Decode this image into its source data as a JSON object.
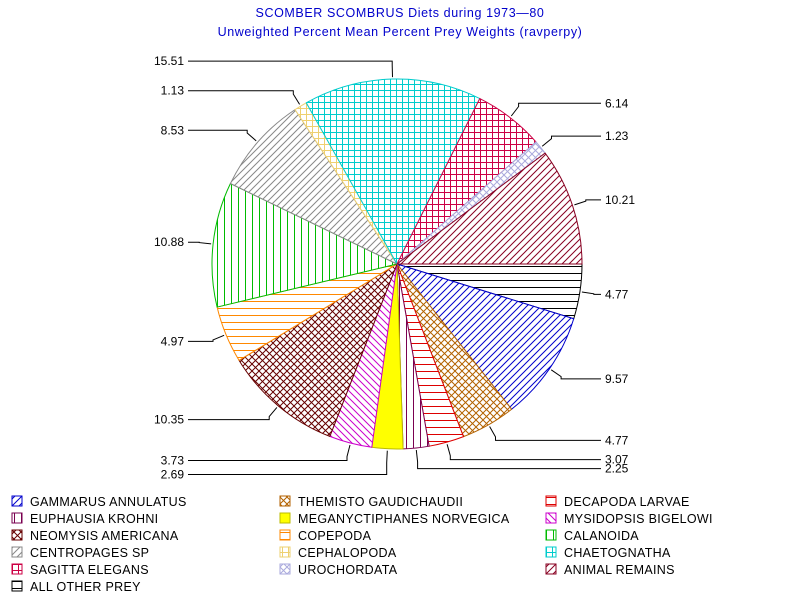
{
  "chart_data": {
    "type": "pie",
    "title": "SCOMBER SCOMBRUS Diets during 1973—80",
    "subtitle": "Unweighted Percent Mean Percent Prey  Weights (ravperpy)",
    "legend_position": "bottom",
    "slices": [
      {
        "name": "ALL OTHER PREY",
        "value": 4.77,
        "label": "4.77",
        "color": "#000000",
        "pattern": "hlines"
      },
      {
        "name": "GAMMARUS ANNULATUS",
        "value": 9.57,
        "label": "9.57",
        "color": "#0000cc",
        "pattern": "fdiag"
      },
      {
        "name": "THEMISTO GAUDICHAUDII",
        "value": 4.77,
        "label": "4.77",
        "color": "#b36200",
        "pattern": "cross-diag"
      },
      {
        "name": "DECAPODA LARVAE",
        "value": 3.07,
        "label": "3.07",
        "color": "#dd0000",
        "pattern": "hlines"
      },
      {
        "name": "EUPHAUSIA KROHNI",
        "value": 2.25,
        "label": "2.25",
        "color": "#7a0050",
        "pattern": "vlines"
      },
      {
        "name": "MEGANYCTIPHANES NORVEGICA",
        "value": 2.69,
        "label": "2.69",
        "color": "#ffff00",
        "pattern": "solid"
      },
      {
        "name": "MYSIDOPSIS BIGELOWI",
        "value": 3.73,
        "label": "3.73",
        "color": "#cc00cc",
        "pattern": "bdiag"
      },
      {
        "name": "NEOMYSIS AMERICANA",
        "value": 10.35,
        "label": "10.35",
        "color": "#660000",
        "pattern": "cross-diag"
      },
      {
        "name": "COPEPODA",
        "value": 4.97,
        "label": "4.97",
        "color": "#ff8800",
        "pattern": "hlines"
      },
      {
        "name": "CALANOIDA",
        "value": 10.88,
        "label": "10.88",
        "color": "#00bb00",
        "pattern": "vlines"
      },
      {
        "name": "CENTROPAGES SP",
        "value": 8.53,
        "label": "8.53",
        "color": "#888888",
        "pattern": "fdiag"
      },
      {
        "name": "CEPHALOPODA",
        "value": 1.13,
        "label": "1.13",
        "color": "#eed070",
        "pattern": "grid"
      },
      {
        "name": "CHAETOGNATHA",
        "value": 15.51,
        "label": "15.51",
        "color": "#00cccc",
        "pattern": "grid"
      },
      {
        "name": "SAGITTA ELEGANS",
        "value": 6.14,
        "label": "6.14",
        "color": "#cc0044",
        "pattern": "grid"
      },
      {
        "name": "UROCHORDATA",
        "value": 1.23,
        "label": "1.23",
        "color": "#aaaadd",
        "pattern": "cross-diag"
      },
      {
        "name": "ANIMAL REMAINS",
        "value": 10.21,
        "label": "10.21",
        "color": "#880022",
        "pattern": "fdiag"
      }
    ],
    "legend": [
      [
        "GAMMARUS ANNULATUS",
        "THEMISTO GAUDICHAUDII",
        "DECAPODA LARVAE"
      ],
      [
        "EUPHAUSIA KROHNI",
        "MEGANYCTIPHANES NORVEGICA",
        "MYSIDOPSIS BIGELOWI"
      ],
      [
        "NEOMYSIS AMERICANA",
        "COPEPODA",
        "CALANOIDA"
      ],
      [
        "CENTROPAGES SP",
        "CEPHALOPODA",
        "CHAETOGNATHA"
      ],
      [
        "SAGITTA ELEGANS",
        "UROCHORDATA",
        "ANIMAL REMAINS"
      ],
      [
        "ALL OTHER PREY"
      ]
    ]
  }
}
